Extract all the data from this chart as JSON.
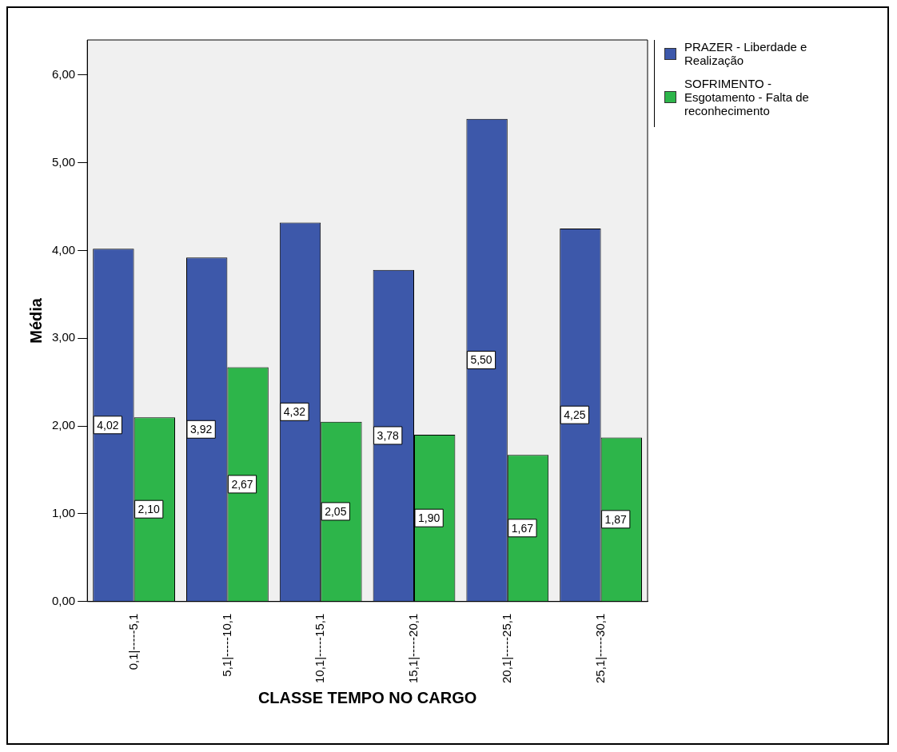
{
  "chart_data": {
    "type": "bar",
    "xlabel": "CLASSE TEMPO NO CARGO",
    "ylabel": "Média",
    "categories": [
      "0,1|-----5,1",
      "5,1|-----10,1",
      "10,1|-----15,1",
      "15,1|-----20,1",
      "20,1|-----25,1",
      "25,1|-----30,1"
    ],
    "series": [
      {
        "name": "PRAZER - Liberdade e Realização",
        "color": "#3d58aa",
        "values": [
          4.02,
          3.92,
          4.32,
          3.78,
          5.5,
          4.25
        ],
        "value_labels": [
          "4,02",
          "3,92",
          "4,32",
          "3,78",
          "5,50",
          "4,25"
        ]
      },
      {
        "name": "SOFRIMENTO - Esgotamento - Falta de reconhecimento",
        "color": "#2db54a",
        "values": [
          2.1,
          2.67,
          2.05,
          1.9,
          1.67,
          1.87
        ],
        "value_labels": [
          "2,10",
          "2,67",
          "2,05",
          "1,90",
          "1,67",
          "1,87"
        ]
      }
    ],
    "ylim": [
      0,
      6.4
    ],
    "yticks": [
      {
        "value": 0,
        "label": "0,00"
      },
      {
        "value": 1,
        "label": "1,00"
      },
      {
        "value": 2,
        "label": "2,00"
      },
      {
        "value": 3,
        "label": "3,00"
      },
      {
        "value": 4,
        "label": "4,00"
      },
      {
        "value": 5,
        "label": "5,00"
      },
      {
        "value": 6,
        "label": "6,00"
      }
    ],
    "legend": "top right",
    "grid": false
  }
}
